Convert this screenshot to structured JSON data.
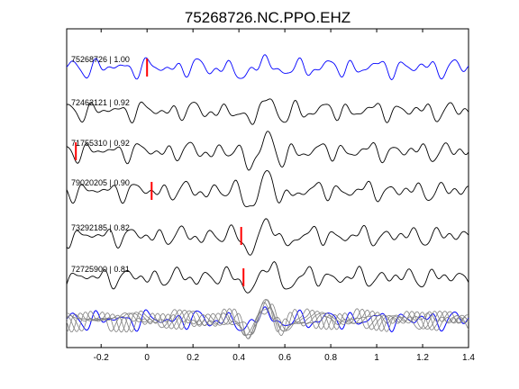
{
  "chart_data": {
    "type": "line",
    "title": "75268726.NC.PPO.EHZ",
    "xlabel": "",
    "ylabel": "",
    "xlim": [
      -0.35,
      1.4
    ],
    "x_ticks": [
      -0.2,
      0,
      0.2,
      0.4,
      0.6,
      0.8,
      1,
      1.2,
      1.4
    ],
    "x_tick_labels": [
      "-0.2",
      "0",
      "0.2",
      "0.4",
      "0.6",
      "0.8",
      "1",
      "1.2",
      "1.4"
    ],
    "grid": false,
    "legend": "none",
    "colors": {
      "reference": "#0000ff",
      "trace": "#000000",
      "stack": "#808080",
      "pick": "#ff0000"
    },
    "traces": [
      {
        "label": "75268726 | 1.00",
        "event_id": "75268726",
        "correlation": 1.0,
        "pick_time": 0.0,
        "reference": true
      },
      {
        "label": "72462121 | 0.92",
        "event_id": "72462121",
        "correlation": 0.92,
        "pick_time": null,
        "reference": false
      },
      {
        "label": "71755310 | 0.92",
        "event_id": "71755310",
        "correlation": 0.92,
        "pick_time": -0.31,
        "reference": false
      },
      {
        "label": "79020205 | 0.90",
        "event_id": "79020205",
        "correlation": 0.9,
        "pick_time": 0.02,
        "reference": false
      },
      {
        "label": "73292185 | 0.82",
        "event_id": "73292185",
        "correlation": 0.82,
        "pick_time": 0.41,
        "reference": false
      },
      {
        "label": "72725900 | 0.81",
        "event_id": "72725900",
        "correlation": 0.81,
        "pick_time": 0.42,
        "reference": false
      }
    ],
    "overlay": {
      "description_only_visual": true
    }
  }
}
